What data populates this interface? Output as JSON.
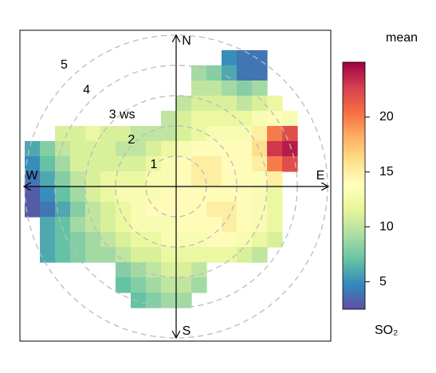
{
  "chart_data": {
    "type": "polar-heatmap",
    "legend_title": "mean",
    "legend_label": "SO₂",
    "compass": [
      "N",
      "E",
      "S",
      "W"
    ],
    "rlim": [
      0,
      5
    ],
    "rticks": [
      1,
      2,
      {
        "value": 3,
        "label": "3 ws"
      },
      4,
      5
    ],
    "zlim": [
      2.5,
      25
    ],
    "zticks": [
      5,
      10,
      15,
      20
    ],
    "colors": [
      "#5E4FA2",
      "#3288BD",
      "#66C2A5",
      "#ABDDA4",
      "#E6F598",
      "#FFFFBF",
      "#FEE08B",
      "#FDAE61",
      "#F46D43",
      "#D53E4F",
      "#9E0142"
    ],
    "x": [
      -4.75,
      -4.25,
      -3.75,
      -3.25,
      -2.75,
      -2.25,
      -1.75,
      -1.25,
      -0.75,
      -0.25,
      0.25,
      0.75,
      1.25,
      1.75,
      2.25,
      2.75,
      3.25,
      3.75
    ],
    "y": [
      4.25,
      3.75,
      3.25,
      2.75,
      2.25,
      1.75,
      1.25,
      0.75,
      0.25,
      -0.25,
      -0.75,
      -1.25,
      -1.75,
      -2.25,
      -2.75,
      -3.25,
      -3.75
    ],
    "z": [
      [
        null,
        null,
        null,
        null,
        null,
        null,
        null,
        null,
        null,
        null,
        null,
        null,
        null,
        5,
        4,
        4,
        null,
        null
      ],
      [
        null,
        null,
        null,
        null,
        null,
        null,
        null,
        null,
        null,
        null,
        null,
        9,
        8,
        6,
        4,
        4,
        null,
        null
      ],
      [
        null,
        null,
        null,
        null,
        null,
        null,
        null,
        null,
        null,
        null,
        null,
        10,
        10,
        9,
        8,
        9,
        null,
        null
      ],
      [
        null,
        null,
        null,
        null,
        null,
        null,
        null,
        null,
        null,
        null,
        10,
        11,
        11,
        11,
        10,
        11,
        12,
        null
      ],
      [
        null,
        null,
        null,
        null,
        null,
        null,
        null,
        null,
        null,
        10,
        11,
        12,
        12,
        12,
        12,
        13,
        14,
        13
      ],
      [
        null,
        null,
        11,
        11,
        12,
        11,
        11,
        10,
        10,
        10,
        11,
        12,
        13,
        13,
        13,
        15,
        20,
        22
      ],
      [
        6,
        8,
        10,
        11,
        11,
        11,
        10,
        10,
        11,
        12,
        13,
        14,
        14,
        14,
        14,
        16,
        23,
        24
      ],
      [
        5,
        7,
        9,
        11,
        11,
        11,
        11,
        11,
        12,
        13,
        14,
        15,
        15,
        14,
        14,
        15,
        20,
        22
      ],
      [
        4,
        6,
        8,
        10,
        11,
        12,
        12,
        12,
        13,
        13,
        14,
        15,
        15,
        14,
        14,
        14,
        15,
        null
      ],
      [
        3,
        5,
        7,
        9,
        11,
        12,
        13,
        13,
        13,
        14,
        14,
        14,
        14,
        14,
        14,
        13,
        12,
        null
      ],
      [
        3,
        4,
        6,
        8,
        10,
        11,
        12,
        13,
        14,
        14,
        14,
        14,
        15,
        15,
        14,
        13,
        12,
        null
      ],
      [
        null,
        6,
        7,
        9,
        10,
        11,
        12,
        13,
        13,
        13,
        14,
        14,
        14,
        15,
        14,
        13,
        12,
        null
      ],
      [
        null,
        6,
        7,
        8,
        9,
        10,
        11,
        12,
        12,
        13,
        13,
        13,
        14,
        14,
        13,
        12,
        11,
        null
      ],
      [
        null,
        6,
        7,
        8,
        9,
        9,
        10,
        11,
        11,
        12,
        12,
        12,
        12,
        12,
        11,
        10,
        null,
        null
      ],
      [
        null,
        null,
        null,
        null,
        null,
        null,
        8,
        9,
        10,
        11,
        11,
        10,
        null,
        null,
        null,
        null,
        null,
        null
      ],
      [
        null,
        null,
        null,
        null,
        null,
        null,
        7,
        8,
        9,
        10,
        10,
        9,
        null,
        null,
        null,
        null,
        null,
        null
      ],
      [
        null,
        null,
        null,
        null,
        null,
        null,
        null,
        7,
        8,
        9,
        9,
        null,
        null,
        null,
        null,
        null,
        null,
        null
      ]
    ]
  }
}
